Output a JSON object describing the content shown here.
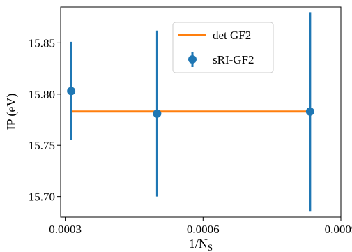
{
  "chart_data": {
    "type": "scatter",
    "title": "",
    "xlabel": "1/N",
    "xlabel_sub": "S",
    "ylabel": "IP (eV)",
    "xlim": [
      0.00029,
      0.0009
    ],
    "ylim": [
      15.68,
      15.885
    ],
    "xticks": [
      0.0003,
      0.0006,
      0.0009
    ],
    "xtick_labels": [
      "0.0003",
      "0.0006",
      "0.0009"
    ],
    "yticks": [
      15.7,
      15.75,
      15.8,
      15.85
    ],
    "ytick_labels": [
      "15.70",
      "15.75",
      "15.80",
      "15.85"
    ],
    "grid": false,
    "legend_position": "upper-center",
    "series": [
      {
        "name": "det GF2",
        "kind": "line",
        "color": "#ff7f0e",
        "x": [
          0.000313,
          0.000833
        ],
        "y": [
          15.783,
          15.783
        ]
      },
      {
        "name": "sRI-GF2",
        "kind": "errorbar",
        "color": "#1f77b4",
        "x": [
          0.000313,
          0.0005,
          0.000833
        ],
        "y": [
          15.803,
          15.781,
          15.783
        ],
        "yerr": [
          0.048,
          0.081,
          0.097
        ]
      }
    ]
  }
}
